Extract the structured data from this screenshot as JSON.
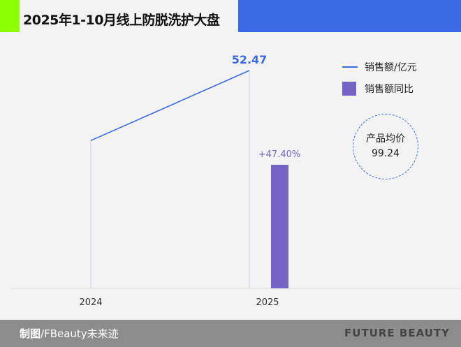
{
  "title": "2025年1-10月线上防脱洗护大盘",
  "chart_data": {
    "type": "bar+line",
    "categories": [
      "2024",
      "2025"
    ],
    "series": [
      {
        "name": "销售额/亿元",
        "type": "line",
        "values": [
          35.6,
          52.47
        ],
        "labels": [
          "",
          "52.47"
        ],
        "color": "#3a6ae3"
      },
      {
        "name": "销售额同比",
        "type": "bar",
        "values": [
          null,
          47.4
        ],
        "labels": [
          "",
          "+47.40%"
        ],
        "color": "#7563c6"
      }
    ],
    "grid": false,
    "legend": "top-right"
  },
  "legend": {
    "line": "销售额/亿元",
    "bar": "销售额同比"
  },
  "price_badge": {
    "label": "产品均价",
    "value": "99.24"
  },
  "footer": {
    "credit_bold": "制图",
    "credit": "/FBeauty未来迹",
    "brand": "FUTURE BEAUTY"
  }
}
